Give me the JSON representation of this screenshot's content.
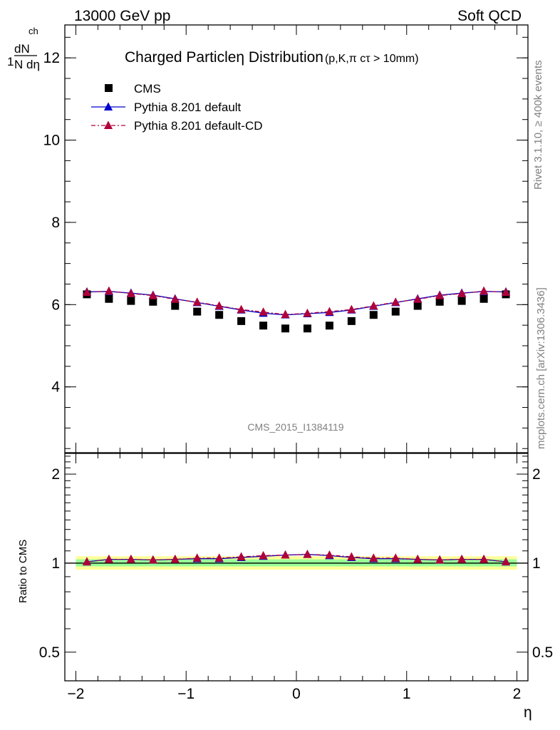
{
  "header": {
    "left": "13000 GeV pp",
    "right": "Soft QCD"
  },
  "side_text": {
    "rivet": "Rivet 3.1.10, ≥ 400k events",
    "mcplots": "mcplots.cern.ch [arXiv:1306.3436]"
  },
  "chart_data": [
    {
      "type": "scatter",
      "title": "Charged Particleη Distribution",
      "title_suffix": "(p,K,π cτ > 10mm)",
      "ylabel_top": "1",
      "ylabel_num": "dN",
      "ylabel_num_sub": "ch",
      "ylabel_den": "N dη",
      "watermark": "CMS_2015_I1384119",
      "xlim": [
        -2.1,
        2.1
      ],
      "ylim": [
        2.4,
        12.8
      ],
      "yticks": [
        4,
        6,
        8,
        10,
        12
      ],
      "legend_position": "top-left",
      "x": [
        -1.9,
        -1.7,
        -1.5,
        -1.3,
        -1.1,
        -0.9,
        -0.7,
        -0.5,
        -0.3,
        -0.1,
        0.1,
        0.3,
        0.5,
        0.7,
        0.9,
        1.1,
        1.3,
        1.5,
        1.7,
        1.9
      ],
      "series": [
        {
          "name": "CMS",
          "marker": "square",
          "color": "#000000",
          "values": [
            6.25,
            6.14,
            6.09,
            6.07,
            5.97,
            5.83,
            5.75,
            5.6,
            5.49,
            5.42,
            5.42,
            5.49,
            5.6,
            5.75,
            5.83,
            5.97,
            6.07,
            6.09,
            6.14,
            6.25
          ]
        },
        {
          "name": "Pythia 8.201 default",
          "marker": "triangle",
          "color": "#0000cc",
          "line": "solid",
          "values": [
            6.31,
            6.32,
            6.28,
            6.23,
            6.14,
            6.05,
            5.96,
            5.87,
            5.79,
            5.75,
            5.78,
            5.81,
            5.87,
            5.96,
            6.05,
            6.14,
            6.23,
            6.28,
            6.32,
            6.31
          ]
        },
        {
          "name": "Pythia 8.201 default-CD",
          "marker": "triangle",
          "color": "#b0003a",
          "line": "dashdot",
          "values": [
            6.3,
            6.33,
            6.27,
            6.22,
            6.13,
            6.06,
            5.97,
            5.88,
            5.82,
            5.76,
            5.79,
            5.83,
            5.88,
            5.97,
            6.06,
            6.13,
            6.22,
            6.27,
            6.33,
            6.3
          ]
        }
      ]
    },
    {
      "type": "scatter",
      "ylabel": "Ratio to CMS",
      "xlabel": "η",
      "yscale": "log",
      "ylim": [
        0.4,
        2.35
      ],
      "yticks": [
        0.5,
        1,
        2
      ],
      "ytick_labels": [
        "0.5",
        "1",
        "2"
      ],
      "xticks": [
        -2,
        -1,
        0,
        1,
        2
      ],
      "xtick_labels": [
        "−2",
        "−1",
        "0",
        "1",
        "2"
      ],
      "x": [
        -1.9,
        -1.7,
        -1.5,
        -1.3,
        -1.1,
        -0.9,
        -0.7,
        -0.5,
        -0.3,
        -0.1,
        0.1,
        0.3,
        0.5,
        0.7,
        0.9,
        1.1,
        1.3,
        1.5,
        1.7,
        1.9
      ],
      "bands": [
        {
          "color": "#ffff99",
          "low": 0.95,
          "high": 1.055
        },
        {
          "color": "#99ff99",
          "low": 0.975,
          "high": 1.03
        }
      ],
      "series": [
        {
          "name": "Pythia 8.201 default",
          "color": "#0000cc",
          "values": [
            1.01,
            1.03,
            1.03,
            1.025,
            1.03,
            1.035,
            1.035,
            1.045,
            1.055,
            1.065,
            1.07,
            1.06,
            1.045,
            1.035,
            1.035,
            1.03,
            1.025,
            1.03,
            1.03,
            1.01
          ]
        },
        {
          "name": "Pythia 8.201 default-CD",
          "color": "#b0003a",
          "values": [
            1.01,
            1.03,
            1.03,
            1.025,
            1.03,
            1.04,
            1.04,
            1.05,
            1.06,
            1.065,
            1.07,
            1.065,
            1.05,
            1.04,
            1.04,
            1.03,
            1.025,
            1.03,
            1.03,
            1.01
          ]
        }
      ]
    }
  ]
}
